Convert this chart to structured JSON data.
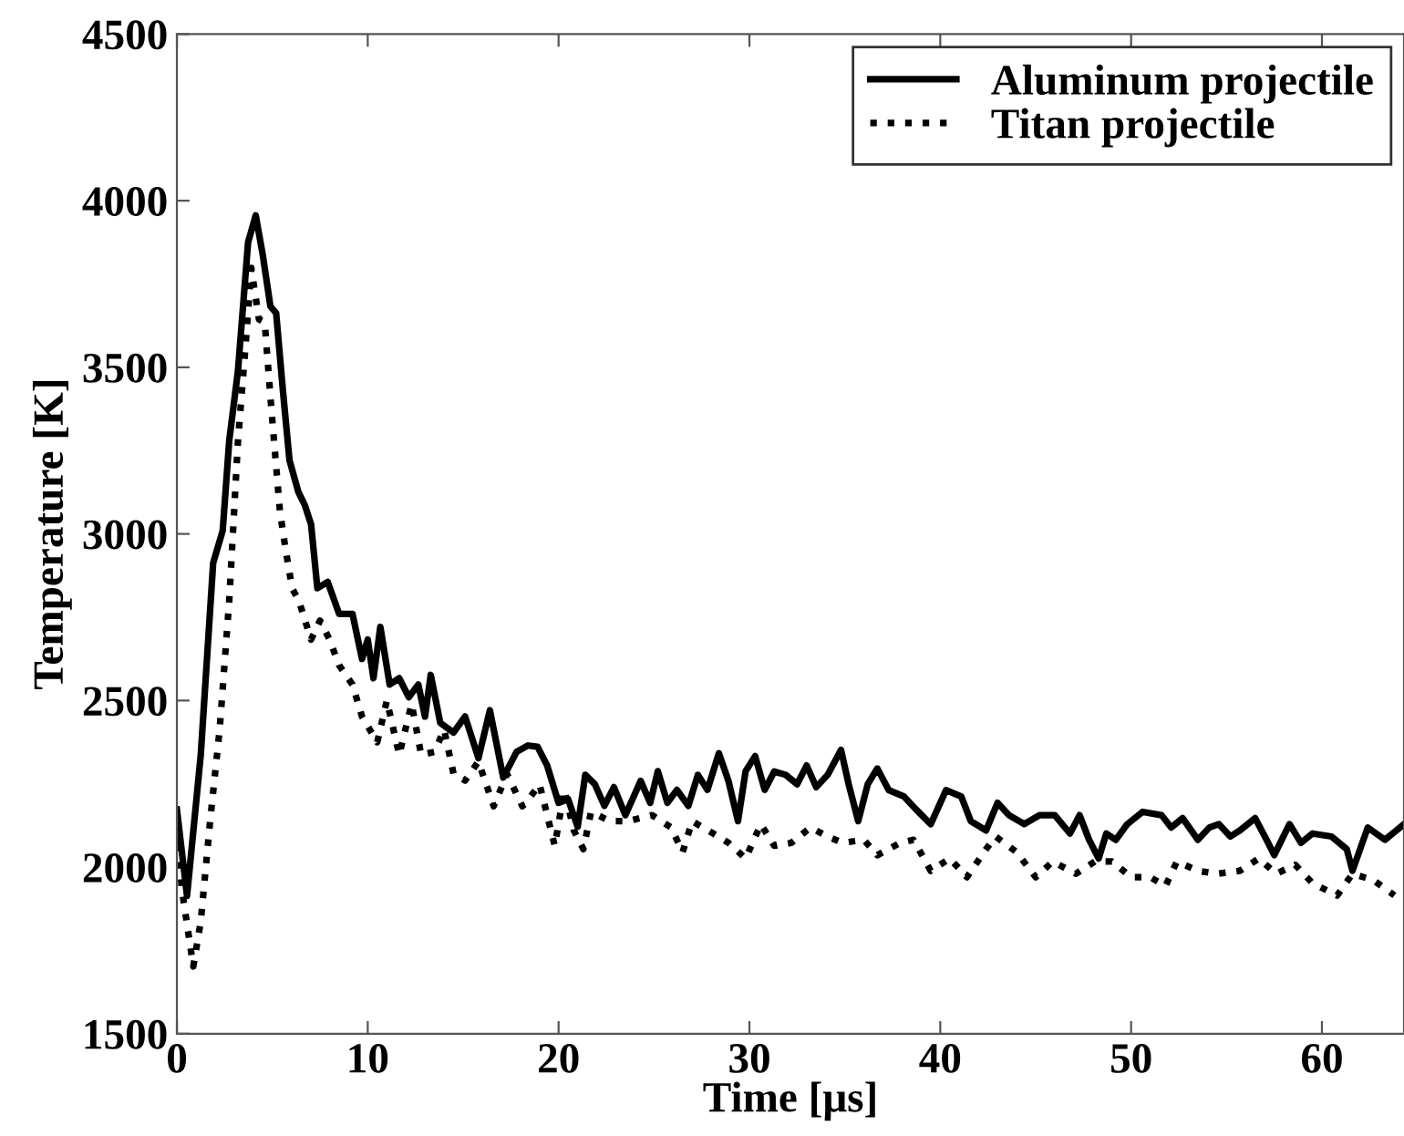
{
  "chart_data": {
    "type": "line",
    "xlabel": "Time [μs]",
    "ylabel": "Temperature [K]",
    "xlim": [
      0,
      64.3
    ],
    "ylim": [
      1500,
      4500
    ],
    "xticks": [
      0,
      10,
      20,
      30,
      40,
      50,
      60
    ],
    "yticks": [
      1500,
      2000,
      2500,
      3000,
      3500,
      4000,
      4500
    ],
    "grid": false,
    "legend": "top right",
    "series": [
      {
        "name": "Aluminum projectile",
        "color": "#000000",
        "line_style": "solid",
        "x": [
          0,
          0.53,
          1.25,
          1.9,
          2.4,
          2.74,
          3.2,
          3.73,
          4.13,
          4.5,
          4.9,
          5.2,
          5.55,
          5.9,
          6.37,
          6.7,
          7.03,
          7.36,
          7.9,
          8.5,
          9.2,
          9.7,
          10,
          10.3,
          10.66,
          11.15,
          11.65,
          12.15,
          12.65,
          13,
          13.3,
          13.8,
          14.5,
          15.1,
          15.8,
          16.4,
          17.1,
          17.8,
          18.4,
          18.9,
          19.4,
          20,
          20.5,
          21,
          21.4,
          21.9,
          22.4,
          22.9,
          23.5,
          24.3,
          24.8,
          25.2,
          25.7,
          26.2,
          26.8,
          27.3,
          27.8,
          28.4,
          28.9,
          29.4,
          29.8,
          30.3,
          30.8,
          31.3,
          31.9,
          32.5,
          33,
          33.5,
          34.1,
          34.8,
          35.2,
          35.7,
          36.2,
          36.7,
          37.3,
          38.1,
          38.7,
          39.5,
          40.3,
          41.1,
          41.6,
          42.4,
          43,
          43.6,
          44.4,
          45.2,
          46,
          46.8,
          47.3,
          47.8,
          48.3,
          48.7,
          49.2,
          49.8,
          50.6,
          51.6,
          52.1,
          52.7,
          53.5,
          54.1,
          54.6,
          55.2,
          55.7,
          56.5,
          57.1,
          57.5,
          58.3,
          58.9,
          59.5,
          60.5,
          61.3,
          61.6,
          62.4,
          63.3,
          64.3
        ],
        "values": [
          2173,
          1914,
          2337,
          2913,
          3010,
          3279,
          3490,
          3875,
          3956,
          3837,
          3683,
          3663,
          3433,
          3221,
          3125,
          3087,
          3029,
          2837,
          2856,
          2760,
          2760,
          2625,
          2683,
          2567,
          2721,
          2548,
          2567,
          2510,
          2548,
          2452,
          2577,
          2433,
          2404,
          2452,
          2327,
          2471,
          2269,
          2346,
          2365,
          2361,
          2305,
          2193,
          2204,
          2121,
          2277,
          2249,
          2184,
          2240,
          2156,
          2259,
          2193,
          2288,
          2193,
          2232,
          2184,
          2277,
          2232,
          2342,
          2259,
          2138,
          2288,
          2333,
          2232,
          2287,
          2277,
          2249,
          2305,
          2240,
          2277,
          2352,
          2249,
          2138,
          2249,
          2296,
          2231,
          2212,
          2175,
          2129,
          2231,
          2212,
          2138,
          2110,
          2193,
          2156,
          2129,
          2156,
          2156,
          2101,
          2156,
          2082,
          2026,
          2101,
          2082,
          2129,
          2166,
          2156,
          2119,
          2147,
          2082,
          2119,
          2129,
          2092,
          2110,
          2147,
          2082,
          2036,
          2129,
          2073,
          2101,
          2092,
          2054,
          1989,
          2119,
          2082,
          2129
        ]
      },
      {
        "name": "Titan projectile",
        "color": "#000000",
        "line_style": "dotted",
        "x": [
          0,
          0.26,
          0.86,
          1.25,
          1.75,
          2.24,
          2.74,
          3.2,
          3.6,
          3.9,
          4.3,
          4.6,
          4.95,
          5.4,
          5.7,
          6.04,
          6.4,
          7.03,
          7.5,
          8,
          8.5,
          9.2,
          9.7,
          10.5,
          11,
          11.65,
          12.3,
          12.8,
          13.5,
          14,
          14.5,
          15.1,
          15.8,
          16.6,
          17.3,
          18.1,
          18.3,
          19,
          19.8,
          20.3,
          20.8,
          21.3,
          21.7,
          22.7,
          23.6,
          24.9,
          25.9,
          26.5,
          27,
          28.1,
          28.9,
          29.8,
          30.6,
          31.3,
          32.2,
          33.2,
          34.1,
          34.9,
          36,
          36.7,
          37.9,
          38.6,
          39.5,
          40.5,
          41.4,
          42.4,
          42.9,
          44,
          45,
          45.9,
          47.1,
          48.1,
          49,
          50,
          51,
          51.8,
          52.4,
          53.5,
          54.5,
          55.7,
          56.7,
          57.6,
          58.6,
          59.5,
          60.8,
          61.6,
          62.7,
          63.8
        ],
        "values": [
          2120,
          1933,
          1702,
          1837,
          2144,
          2413,
          2798,
          3279,
          3567,
          3798,
          3644,
          3635,
          3375,
          3067,
          2952,
          2837,
          2798,
          2683,
          2740,
          2683,
          2606,
          2548,
          2452,
          2375,
          2500,
          2337,
          2490,
          2337,
          2346,
          2413,
          2279,
          2260,
          2317,
          2183,
          2279,
          2183,
          2193,
          2249,
          2064,
          2231,
          2110,
          2054,
          2166,
          2138,
          2138,
          2156,
          2119,
          2045,
          2138,
          2101,
          2073,
          2026,
          2129,
          2064,
          2073,
          2119,
          2092,
          2073,
          2082,
          2036,
          2073,
          2082,
          1989,
          2026,
          1970,
          2054,
          2092,
          2045,
          1970,
          2017,
          1980,
          2017,
          2017,
          1970,
          1970,
          1943,
          2017,
          1989,
          1980,
          1989,
          2026,
          1980,
          2007,
          1952,
          1915,
          1980,
          1961,
          1915
        ]
      }
    ]
  }
}
